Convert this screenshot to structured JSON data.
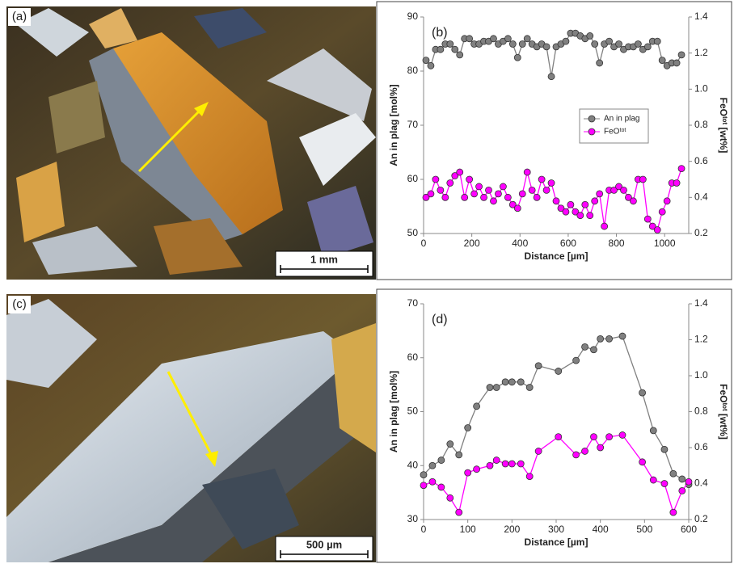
{
  "images": [
    {
      "label": "(a)",
      "scale_bar": "1 mm"
    },
    {
      "label": "(c)",
      "scale_bar": "500 µm"
    }
  ],
  "chart_data": [
    {
      "type": "line",
      "panel_label": "(b)",
      "xlabel": "Distance [µm]",
      "ylabel": "An in plag [mol%]",
      "y2label": "FeOᵗᵒᵗ [wt%]",
      "x": [
        10,
        30,
        50,
        70,
        90,
        110,
        130,
        150,
        170,
        190,
        210,
        230,
        250,
        270,
        290,
        310,
        330,
        350,
        370,
        390,
        410,
        430,
        450,
        470,
        490,
        510,
        530,
        550,
        570,
        590,
        610,
        630,
        650,
        670,
        690,
        710,
        730,
        750,
        770,
        790,
        810,
        830,
        850,
        870,
        890,
        910,
        930,
        950,
        970,
        990,
        1010,
        1030,
        1050,
        1070
      ],
      "series": [
        {
          "name": "An in plag",
          "color": "#808080",
          "values": [
            82,
            81,
            84,
            84,
            85,
            85,
            84,
            83,
            86,
            86,
            85,
            85,
            85.5,
            85.5,
            86,
            85,
            85.5,
            86,
            85,
            82.5,
            85,
            86,
            85,
            84.5,
            85,
            84.5,
            79,
            84.5,
            85,
            85.5,
            87,
            87,
            86.5,
            86,
            86.5,
            85,
            81.5,
            85,
            85.5,
            84.5,
            85,
            84,
            84.5,
            84.5,
            85,
            84,
            84.5,
            85.5,
            85.5,
            82,
            81,
            81.5,
            81.5,
            83
          ]
        },
        {
          "name": "FeOᵗᵒᵗ",
          "color": "#ff00ff",
          "axis": "y2",
          "values": [
            0.4,
            0.42,
            0.5,
            0.44,
            0.4,
            0.48,
            0.52,
            0.54,
            0.4,
            0.5,
            0.42,
            0.46,
            0.4,
            0.44,
            0.38,
            0.42,
            0.46,
            0.4,
            0.36,
            0.34,
            0.42,
            0.54,
            0.44,
            0.4,
            0.5,
            0.44,
            0.48,
            0.38,
            0.34,
            0.32,
            0.36,
            0.32,
            0.3,
            0.36,
            0.3,
            0.38,
            0.42,
            0.24,
            0.44,
            0.44,
            0.46,
            0.44,
            0.4,
            0.38,
            0.5,
            0.5,
            0.28,
            0.24,
            0.22,
            0.32,
            0.38,
            0.48,
            0.48,
            0.56
          ]
        }
      ],
      "xlim": [
        0,
        1100
      ],
      "xticks": [
        0,
        200,
        400,
        600,
        800,
        1000
      ],
      "ylim": [
        50,
        90
      ],
      "yticks": [
        50,
        60,
        70,
        80,
        90
      ],
      "y2lim": [
        0.2,
        1.4
      ],
      "y2ticks": [
        0.2,
        0.4,
        0.6,
        0.8,
        {
          "value": 1,
          "label": "1.0"
        },
        1.2,
        1.4
      ],
      "legend": "center-right"
    },
    {
      "type": "line",
      "panel_label": "(d)",
      "xlabel": "Distance [µm]",
      "ylabel": "An in plag [mol%]",
      "y2label": "FeOᵗᵒᵗ [wt%]",
      "x": [
        0,
        20,
        40,
        60,
        80,
        100,
        120,
        150,
        165,
        185,
        200,
        220,
        240,
        260,
        305,
        345,
        365,
        385,
        400,
        420,
        450,
        495,
        520,
        545,
        565,
        585,
        600
      ],
      "series": [
        {
          "name": "An in plag",
          "color": "#808080",
          "values": [
            38.3,
            40,
            41,
            44,
            42,
            47,
            51,
            54.5,
            54.5,
            55.5,
            55.5,
            55.5,
            54.5,
            58.5,
            57.5,
            59.5,
            62,
            61.5,
            63.5,
            63.5,
            64,
            53.5,
            46.5,
            43,
            38.5,
            37.5,
            36.5
          ]
        },
        {
          "name": "FeOᵗᵒᵗ",
          "color": "#ff00ff",
          "axis": "y2",
          "values": [
            0.39,
            0.41,
            0.38,
            0.32,
            0.24,
            0.46,
            0.48,
            0.5,
            0.53,
            0.51,
            0.51,
            0.51,
            0.44,
            0.58,
            0.66,
            0.56,
            0.58,
            0.66,
            0.6,
            0.66,
            0.67,
            0.52,
            0.42,
            0.4,
            0.24,
            0.36,
            0.41
          ]
        }
      ],
      "xlim": [
        0,
        600
      ],
      "xticks": [
        0,
        100,
        200,
        300,
        400,
        500,
        600
      ],
      "ylim": [
        30,
        70
      ],
      "yticks": [
        30,
        40,
        50,
        60,
        70
      ],
      "y2lim": [
        0.2,
        1.4
      ],
      "y2ticks": [
        0.2,
        0.4,
        0.6,
        0.8,
        {
          "value": 1,
          "label": "1.0"
        },
        1.2,
        1.4
      ]
    }
  ]
}
